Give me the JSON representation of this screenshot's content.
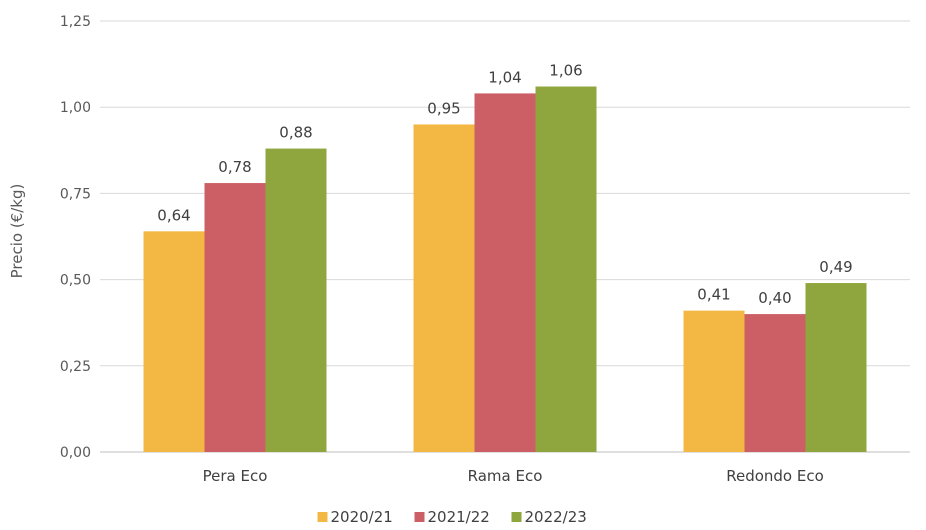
{
  "chart_data": {
    "type": "bar",
    "title": "",
    "xlabel": "",
    "ylabel": "Precio (€/kg)",
    "categories": [
      "Pera Eco",
      "Rama Eco",
      "Redondo Eco"
    ],
    "series": [
      {
        "name": "2020/21",
        "color": "#F2B843",
        "values": [
          0.64,
          0.95,
          0.41
        ],
        "labels": [
          "0,64",
          "0,95",
          "0,41"
        ]
      },
      {
        "name": "2021/22",
        "color": "#CC5F65",
        "values": [
          0.78,
          1.04,
          0.4
        ],
        "labels": [
          "0,78",
          "1,04",
          "0,40"
        ]
      },
      {
        "name": "2022/23",
        "color": "#8FA63E",
        "values": [
          0.88,
          1.06,
          0.49
        ],
        "labels": [
          "0,88",
          "1,06",
          "0,49"
        ]
      }
    ],
    "ylim": [
      0,
      1.25
    ],
    "yticks": [
      {
        "value": 0,
        "label": "0,00"
      },
      {
        "value": 0.25,
        "label": "0,25"
      },
      {
        "value": 0.5,
        "label": "0,50"
      },
      {
        "value": 0.75,
        "label": "0,75"
      },
      {
        "value": 1.0,
        "label": "1,00"
      },
      {
        "value": 1.25,
        "label": "1,25"
      }
    ],
    "grid": true,
    "legend_position": "bottom"
  }
}
